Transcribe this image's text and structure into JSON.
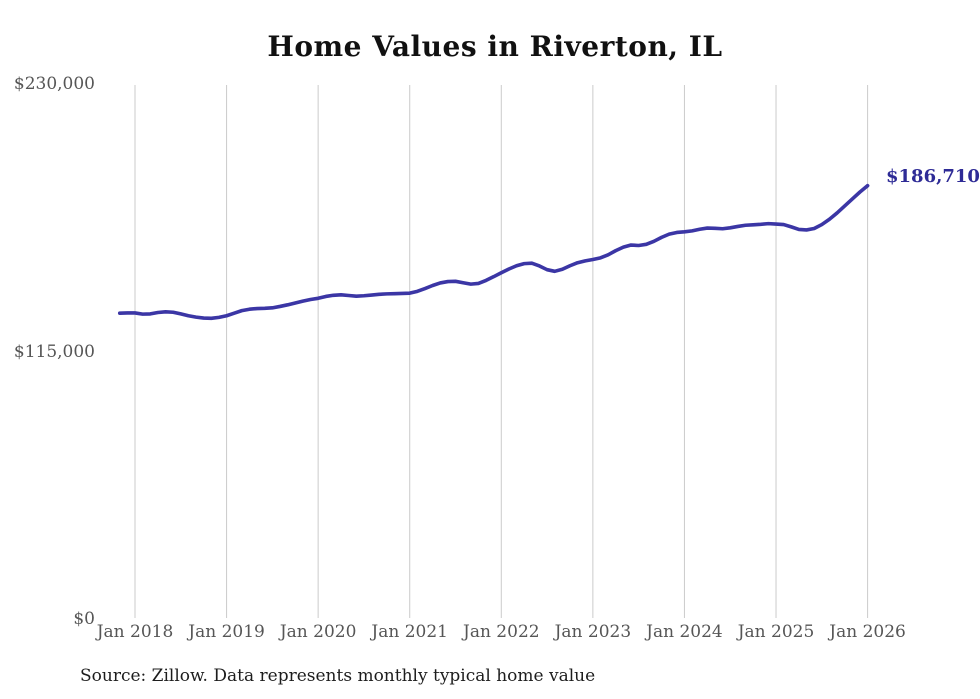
{
  "chart_data": {
    "type": "line",
    "title": "Home Values in Riverton, IL",
    "source": "Source: Zillow. Data represents monthly typical home value",
    "end_label": "$186,710",
    "latest_value": 186710,
    "x_tick_labels": [
      "Jan 2018",
      "Jan 2019",
      "Jan 2020",
      "Jan 2021",
      "Jan 2022",
      "Jan 2023",
      "Jan 2024",
      "Jan 2025",
      "Jan 2026"
    ],
    "y_ticks": [
      {
        "label": "$230,000",
        "value": 230000
      },
      {
        "label": "$115,000",
        "value": 115000
      },
      {
        "label": "$0",
        "value": 0
      }
    ],
    "ylim": [
      0,
      230000
    ],
    "grid": "vertical-only",
    "legend": "none",
    "line_color": "#3b36a5",
    "end_label_color": "#2e2b96",
    "grid_color": "#cbcbcb",
    "series": [
      {
        "name": "Monthly typical home value",
        "frequency": "monthly",
        "start_month": "Nov 2017",
        "end_month": "Jan 2026",
        "values": [
          131900,
          132000,
          132000,
          131500,
          131600,
          132200,
          132500,
          132300,
          131600,
          130800,
          130200,
          129800,
          129700,
          130100,
          130800,
          131900,
          133000,
          133600,
          133900,
          134000,
          134200,
          134800,
          135500,
          136300,
          137100,
          137800,
          138300,
          139100,
          139600,
          139800,
          139500,
          139200,
          139400,
          139700,
          140000,
          140200,
          140300,
          140400,
          140500,
          141300,
          142500,
          143800,
          144900,
          145500,
          145600,
          145000,
          144400,
          144700,
          146000,
          147600,
          149300,
          150900,
          152300,
          153200,
          153400,
          152200,
          150600,
          149900,
          150800,
          152300,
          153600,
          154400,
          155000,
          155700,
          157000,
          158800,
          160300,
          161200,
          161000,
          161500,
          162800,
          164500,
          165900,
          166600,
          166900,
          167300,
          168000,
          168500,
          168400,
          168200,
          168600,
          169200,
          169700,
          169900,
          170100,
          170400,
          170200,
          170000,
          169000,
          167900,
          167700,
          168300,
          170000,
          172300,
          175000,
          178000,
          181000,
          184000,
          186710
        ]
      }
    ]
  }
}
